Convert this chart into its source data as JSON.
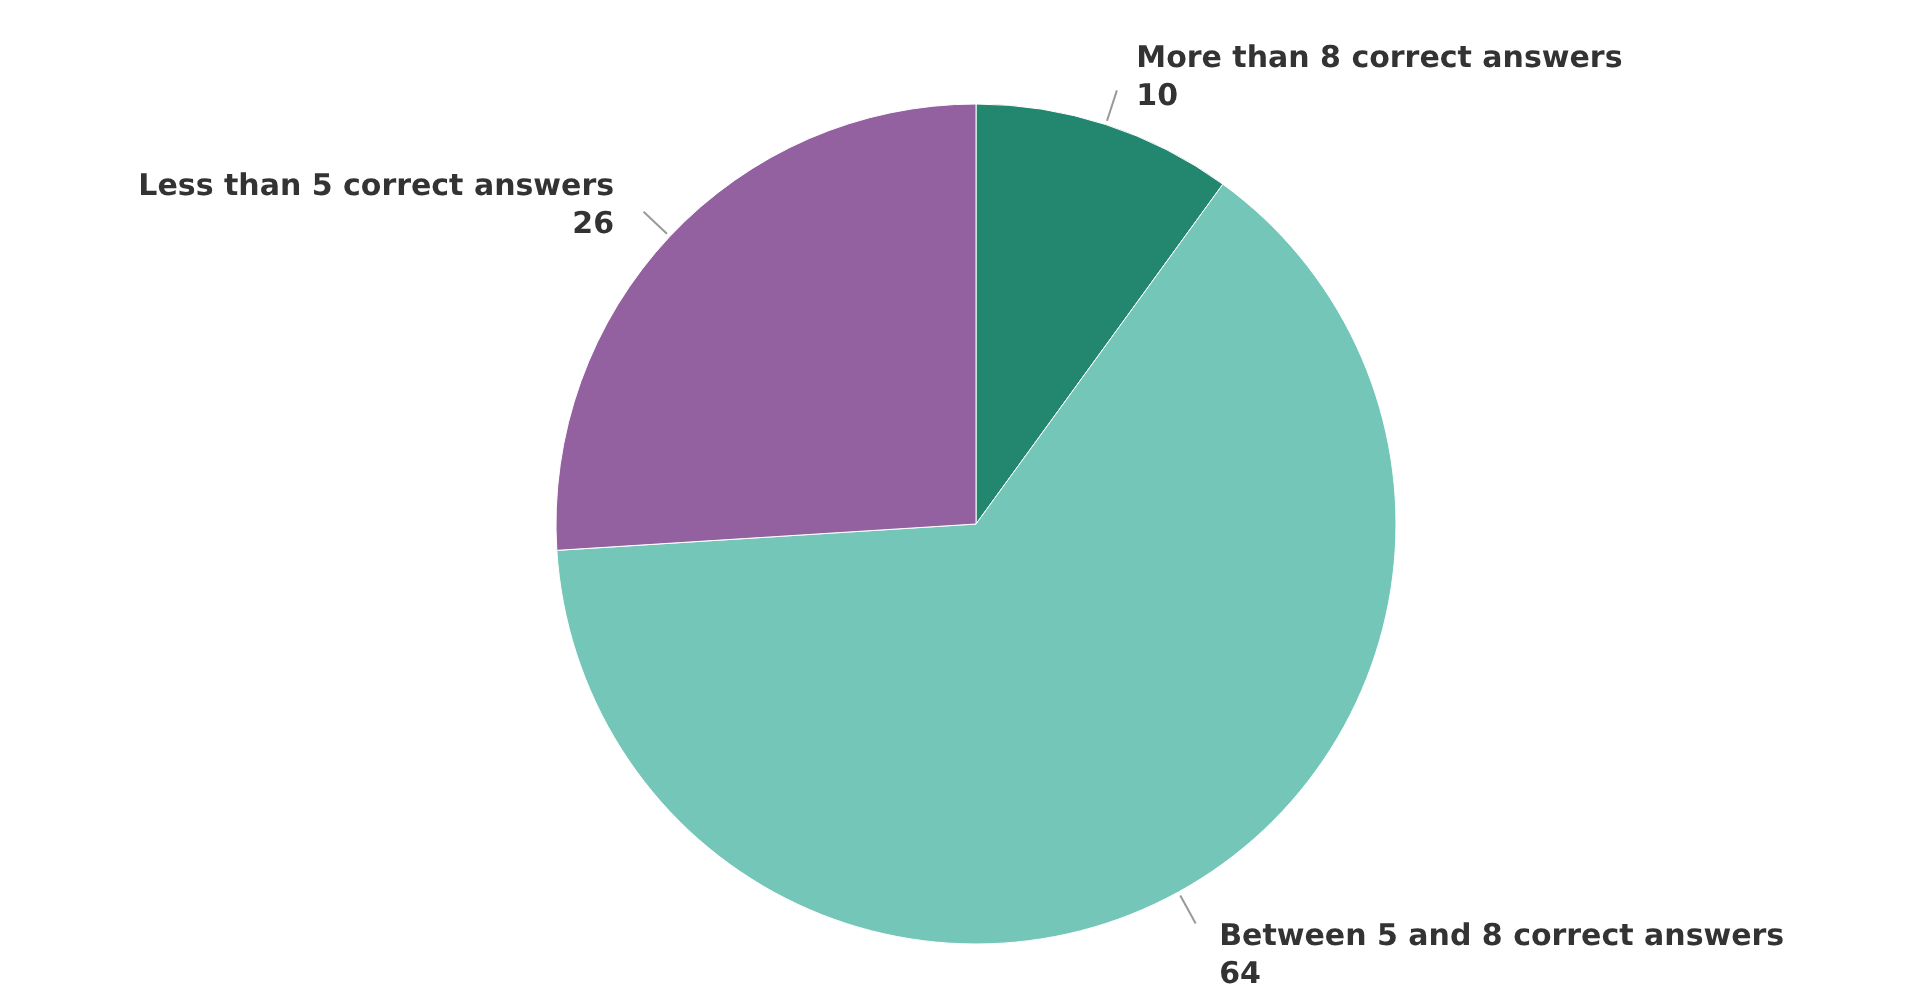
{
  "chart_data": {
    "type": "pie",
    "categories": [
      "More than 8 correct answers",
      "Between 5 and 8 correct answers",
      "Less than 5 correct answers"
    ],
    "values": [
      10,
      64,
      26
    ],
    "colors": [
      "#23876f",
      "#74c7b8",
      "#9461a0"
    ],
    "data_labels": true
  }
}
